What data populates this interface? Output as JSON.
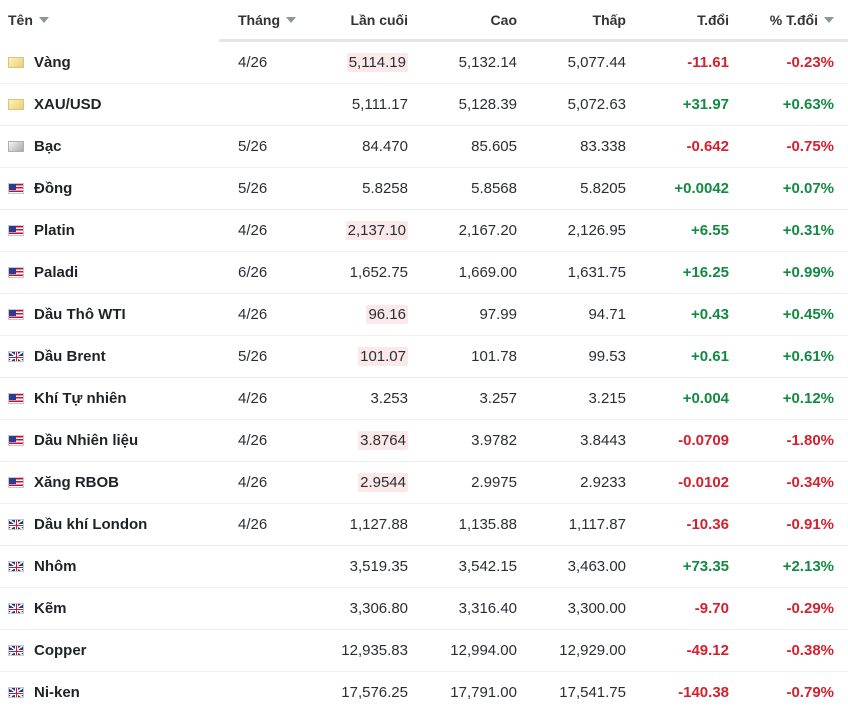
{
  "header": {
    "name": "Tên",
    "month": "Tháng",
    "last": "Lần cuối",
    "high": "Cao",
    "low": "Thấp",
    "change": "T.đổi",
    "pct_change": "% T.đổi"
  },
  "rows": [
    {
      "flag": "gold",
      "name": "Vàng",
      "month": "4/26",
      "last": "5,114.19",
      "last_hl": true,
      "high": "5,132.14",
      "low": "5,077.44",
      "change": "-11.61",
      "pct": "-0.23%",
      "dir": "neg"
    },
    {
      "flag": "gold",
      "name": "XAU/USD",
      "month": "",
      "last": "5,111.17",
      "last_hl": false,
      "high": "5,128.39",
      "low": "5,072.63",
      "change": "+31.97",
      "pct": "+0.63%",
      "dir": "pos"
    },
    {
      "flag": "silver",
      "name": "Bạc",
      "month": "5/26",
      "last": "84.470",
      "last_hl": false,
      "high": "85.605",
      "low": "83.338",
      "change": "-0.642",
      "pct": "-0.75%",
      "dir": "neg"
    },
    {
      "flag": "us",
      "name": "Đồng",
      "month": "5/26",
      "last": "5.8258",
      "last_hl": false,
      "high": "5.8568",
      "low": "5.8205",
      "change": "+0.0042",
      "pct": "+0.07%",
      "dir": "pos"
    },
    {
      "flag": "us",
      "name": "Platin",
      "month": "4/26",
      "last": "2,137.10",
      "last_hl": true,
      "high": "2,167.20",
      "low": "2,126.95",
      "change": "+6.55",
      "pct": "+0.31%",
      "dir": "pos"
    },
    {
      "flag": "us",
      "name": "Paladi",
      "month": "6/26",
      "last": "1,652.75",
      "last_hl": false,
      "high": "1,669.00",
      "low": "1,631.75",
      "change": "+16.25",
      "pct": "+0.99%",
      "dir": "pos"
    },
    {
      "flag": "us",
      "name": "Dầu Thô WTI",
      "month": "4/26",
      "last": "96.16",
      "last_hl": true,
      "high": "97.99",
      "low": "94.71",
      "change": "+0.43",
      "pct": "+0.45%",
      "dir": "pos"
    },
    {
      "flag": "uk",
      "name": "Dầu Brent",
      "month": "5/26",
      "last": "101.07",
      "last_hl": true,
      "high": "101.78",
      "low": "99.53",
      "change": "+0.61",
      "pct": "+0.61%",
      "dir": "pos"
    },
    {
      "flag": "us",
      "name": "Khí Tự nhiên",
      "month": "4/26",
      "last": "3.253",
      "last_hl": false,
      "high": "3.257",
      "low": "3.215",
      "change": "+0.004",
      "pct": "+0.12%",
      "dir": "pos"
    },
    {
      "flag": "us",
      "name": "Dầu Nhiên liệu",
      "month": "4/26",
      "last": "3.8764",
      "last_hl": true,
      "high": "3.9782",
      "low": "3.8443",
      "change": "-0.0709",
      "pct": "-1.80%",
      "dir": "neg"
    },
    {
      "flag": "us",
      "name": "Xăng RBOB",
      "month": "4/26",
      "last": "2.9544",
      "last_hl": true,
      "high": "2.9975",
      "low": "2.9233",
      "change": "-0.0102",
      "pct": "-0.34%",
      "dir": "neg"
    },
    {
      "flag": "uk",
      "name": "Dầu khí London",
      "month": "4/26",
      "last": "1,127.88",
      "last_hl": false,
      "high": "1,135.88",
      "low": "1,117.87",
      "change": "-10.36",
      "pct": "-0.91%",
      "dir": "neg"
    },
    {
      "flag": "uk",
      "name": "Nhôm",
      "month": "",
      "last": "3,519.35",
      "last_hl": false,
      "high": "3,542.15",
      "low": "3,463.00",
      "change": "+73.35",
      "pct": "+2.13%",
      "dir": "pos"
    },
    {
      "flag": "uk",
      "name": "Kẽm",
      "month": "",
      "last": "3,306.80",
      "last_hl": false,
      "high": "3,316.40",
      "low": "3,300.00",
      "change": "-9.70",
      "pct": "-0.29%",
      "dir": "neg"
    },
    {
      "flag": "uk",
      "name": "Copper",
      "month": "",
      "last": "12,935.83",
      "last_hl": false,
      "high": "12,994.00",
      "low": "12,929.00",
      "change": "-49.12",
      "pct": "-0.38%",
      "dir": "neg"
    },
    {
      "flag": "uk",
      "name": "Ni-ken",
      "month": "",
      "last": "17,576.25",
      "last_hl": false,
      "high": "17,791.00",
      "low": "17,541.75",
      "change": "-140.38",
      "pct": "-0.79%",
      "dir": "neg"
    }
  ],
  "icons": {
    "sort": "caret-down-icon",
    "gold": "gold-bar-icon",
    "silver": "silver-bar-icon",
    "us": "us-flag-icon",
    "uk": "uk-flag-icon"
  },
  "colors": {
    "positive": "#138a42",
    "negative": "#d3212f",
    "highlight": "#fbe9ea"
  }
}
